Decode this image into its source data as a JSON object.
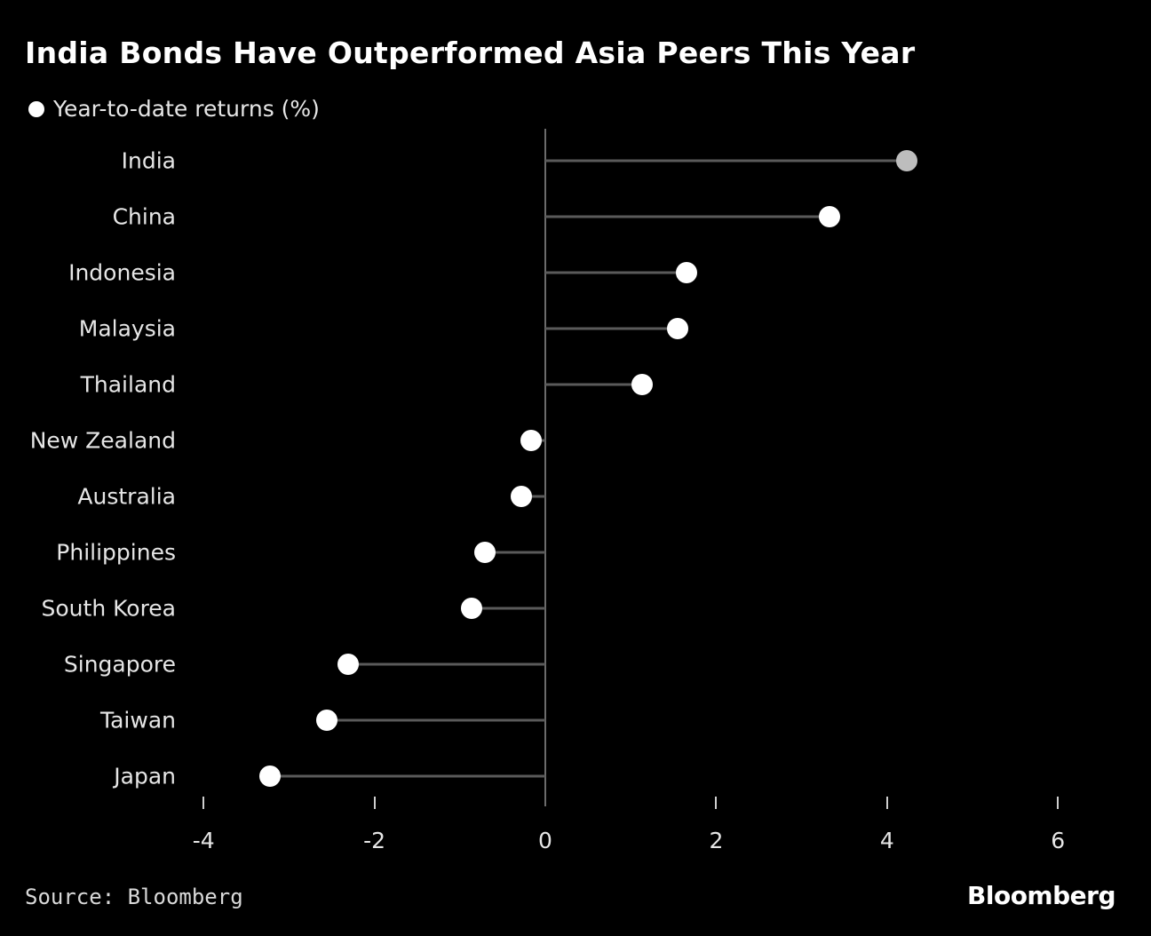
{
  "header": {
    "title": "India Bonds Have Outperformed Asia Peers This Year",
    "legend_label": "Year-to-date returns (%)"
  },
  "footer": {
    "source": "Source: Bloomberg",
    "brand": "Bloomberg"
  },
  "colors": {
    "background": "#000000",
    "point": "#ffffff",
    "highlight_point": "#bdbdbd",
    "stem": "#5a5a5a",
    "axis": "#6b6b6b"
  },
  "chart_data": {
    "type": "lollipop",
    "title": "India Bonds Have Outperformed Asia Peers This Year",
    "legend": [
      "Year-to-date returns (%)"
    ],
    "legend_position": "top-left",
    "xlabel": "",
    "ylabel": "",
    "xlim": [
      -4,
      6
    ],
    "xticks": [
      "-4",
      "-2",
      "0",
      "2",
      "4",
      "6"
    ],
    "grid": false,
    "orientation": "horizontal",
    "categories": [
      "India",
      "China",
      "Indonesia",
      "Malaysia",
      "Thailand",
      "New Zealand",
      "Australia",
      "Philippines",
      "South Korea",
      "Singapore",
      "Taiwan",
      "Japan"
    ],
    "series": [
      {
        "name": "Year-to-date returns (%)",
        "values": [
          4.23,
          3.33,
          1.65,
          1.55,
          1.13,
          -0.17,
          -0.28,
          -0.71,
          -0.86,
          -2.31,
          -2.56,
          -3.22
        ]
      }
    ],
    "highlight": "India",
    "source": "Source: Bloomberg"
  }
}
